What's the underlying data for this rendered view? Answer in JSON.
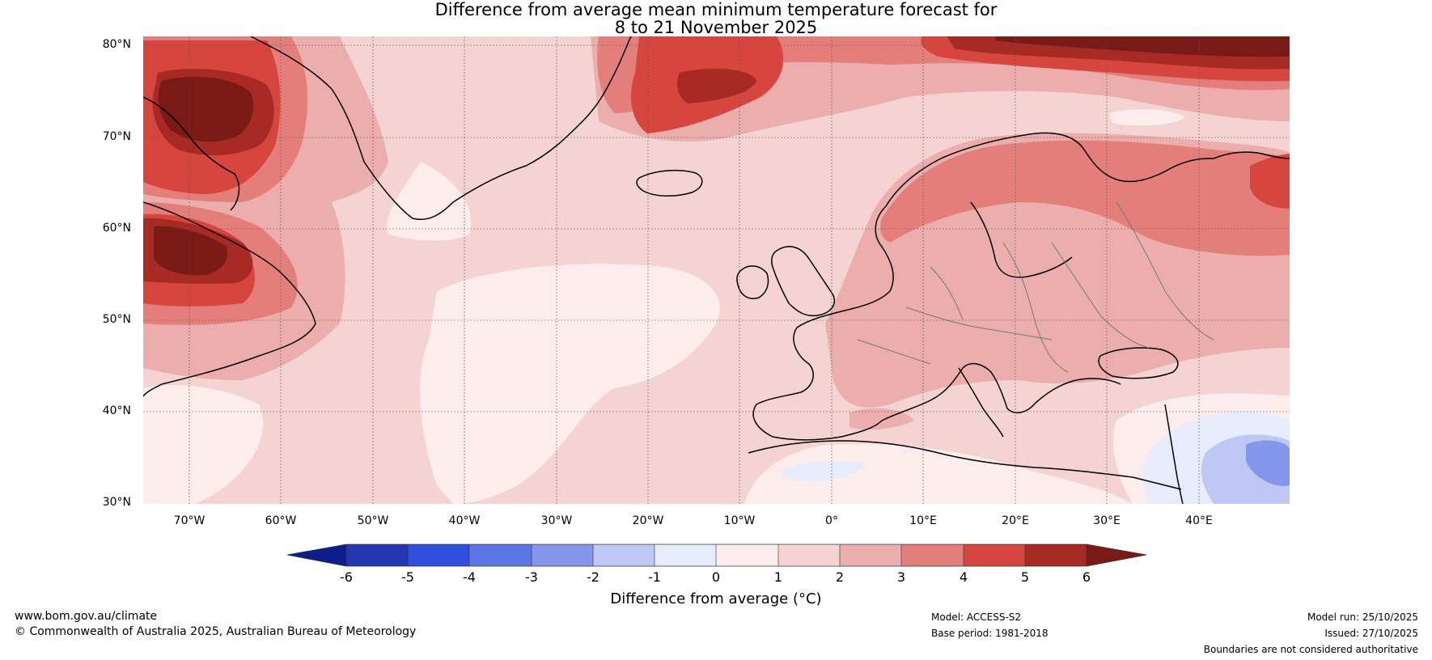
{
  "title": {
    "line1": "Difference from average mean minimum temperature forecast for",
    "line2": "8 to 21 November 2025"
  },
  "latitude_labels": [
    "80°N",
    "70°N",
    "60°N",
    "50°N",
    "40°N",
    "30°N"
  ],
  "longitude_labels": [
    "70°W",
    "60°W",
    "50°W",
    "40°W",
    "30°W",
    "20°W",
    "10°W",
    "0°",
    "10°E",
    "20°E",
    "30°E",
    "40°E"
  ],
  "colorbar": {
    "ticks": [
      "-6",
      "-5",
      "-4",
      "-3",
      "-2",
      "-1",
      "0",
      "1",
      "2",
      "3",
      "4",
      "5",
      "6"
    ],
    "colors": [
      "#0d1e8c",
      "#2437b0",
      "#2f4fde",
      "#5b77e6",
      "#8597ec",
      "#bfc8f4",
      "#e7ecfc",
      "#fdecec",
      "#f5d3d3",
      "#ecadad",
      "#e37e7b",
      "#d6463f",
      "#a82a25",
      "#7a1a16"
    ],
    "label": "Difference from average (°C)"
  },
  "map": {
    "region": "North Atlantic and Europe",
    "lon_range": [
      -75,
      50
    ],
    "lat_range": [
      30,
      81
    ]
  },
  "footer": {
    "website": "www.bom.gov.au/climate",
    "copyright": "© Commonwealth of Australia 2025, Australian Bureau of Meteorology",
    "model": "Model: ACCESS-S2",
    "base_period": "Base period: 1981-2018",
    "model_run": "Model run: 25/10/2025",
    "issued": "Issued: 27/10/2025",
    "disclaimer": "Boundaries are not considered authoritative"
  }
}
